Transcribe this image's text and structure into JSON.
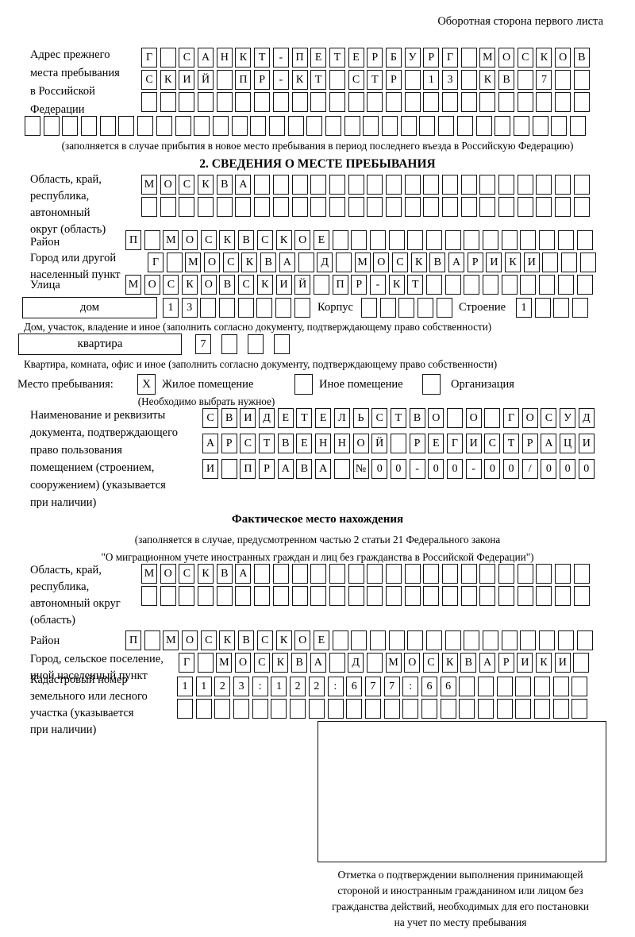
{
  "header_note": "Оборотная сторона первого листа",
  "prev_address": {
    "label_lines": [
      "Адрес прежнего",
      "места пребывания",
      "в Российской",
      "Федерации"
    ],
    "row1": {
      "chars": "Г САНКТ-ПЕТЕРБУРГ МОСКОВ",
      "count": 24
    },
    "row2": {
      "chars": "СКИЙ ПР-КТ СТР 13 КВ 7",
      "count": 24
    },
    "row3": {
      "chars": "",
      "count": 24
    },
    "row4": {
      "chars": "",
      "count": 30
    },
    "note": "(заполняется в случае прибытия в новое место пребывания в период последнего въезда в Российскую Федерацию)"
  },
  "section2": {
    "title": "2. СВЕДЕНИЯ О МЕСТЕ ПРЕБЫВАНИЯ",
    "oblast": {
      "label_lines": [
        "Область, край,",
        "республика,",
        "автономный",
        "округ (область)"
      ],
      "row1": {
        "chars": "МОСКВА",
        "count": 24
      },
      "row2": {
        "chars": "",
        "count": 24
      }
    },
    "raion": {
      "label": "Район",
      "row": {
        "chars": "П МОСКВСКОЕ",
        "count": 25
      }
    },
    "gorod": {
      "label_lines": [
        "Город или другой",
        "населенный пункт"
      ],
      "row": {
        "chars": "Г МОСКВА Д МОСКВАРИКИ",
        "count": 24
      }
    },
    "ulitsa": {
      "label": "Улица",
      "row": {
        "chars": "МОСКОВСКИЙ ПР-КТ",
        "count": 25
      }
    },
    "dom": {
      "label": "дом",
      "boxes": {
        "chars": "13",
        "count": 8
      },
      "korpus_label": "Корпус",
      "korpus_boxes": {
        "chars": "",
        "count": 5
      },
      "stroenie_label": "Строение",
      "stroenie_boxes": {
        "chars": "1",
        "count": 4
      },
      "caption": "Дом, участок, владение и иное (заполнить согласно документу, подтверждающему право собственности)"
    },
    "kvartira": {
      "label": "квартира",
      "boxes": {
        "chars": "7",
        "count": 4
      },
      "caption": "Квартира, комната, офис и иное (заполнить согласно документу, подтверждающему право собственности)"
    },
    "stay": {
      "label": "Место пребывания:",
      "options": [
        {
          "mark": "X",
          "label": "Жилое помещение"
        },
        {
          "mark": "",
          "label": "Иное помещение"
        },
        {
          "mark": "",
          "label": "Организация"
        }
      ],
      "note": "(Необходимо выбрать нужное)"
    },
    "document": {
      "label_lines": [
        "Наименование и реквизиты",
        "документа, подтверждающего",
        "право пользования",
        "помещением (строением,",
        "сооружением) (указывается",
        "при наличии)"
      ],
      "row1": {
        "chars": "СВИДЕТЕЛЬСТВО О ГОСУД",
        "count": 21
      },
      "row2": {
        "chars": "АРСТВЕННОЙ РЕГИСТРАЦИ",
        "count": 21
      },
      "row3": {
        "chars": "И ПРАВА №00-00-00/000",
        "count": 21
      }
    }
  },
  "actual": {
    "title": "Фактическое место нахождения",
    "note_lines": [
      "(заполняется в случае, предусмотренном частью 2 статьи 21 Федерального закона",
      "\"О миграционном учете иностранных граждан и лиц без гражданства в Российской Федерации\")"
    ],
    "oblast": {
      "label_lines": [
        "Область, край,",
        "республика,",
        "автономный округ",
        "(область)"
      ],
      "row1": {
        "chars": "МОСКВА",
        "count": 24
      },
      "row2": {
        "chars": "",
        "count": 24
      }
    },
    "raion": {
      "label": "Район",
      "row": {
        "chars": "П МОСКВСКОЕ",
        "count": 25
      }
    },
    "gorod": {
      "label_lines": [
        "Город, сельское поселение,",
        "иной населенный пункт"
      ],
      "row": {
        "chars": "Г МОСКВА Д МОСКВАРИКИ",
        "count": 22
      }
    },
    "kadastr": {
      "label_lines": [
        "Кадастровый номер",
        "земельного или лесного",
        "участка (указывается",
        "при наличии)"
      ],
      "row1": {
        "chars": "1123:122:677:66",
        "count": 22
      },
      "row2": {
        "chars": "",
        "count": 22
      }
    },
    "confirmation_lines": [
      "Отметка о подтверждении выполнения принимающей",
      "стороной и иностранным гражданином или лицом без",
      "гражданства действий, необходимых для его постановки",
      "на учет по месту пребывания"
    ]
  }
}
